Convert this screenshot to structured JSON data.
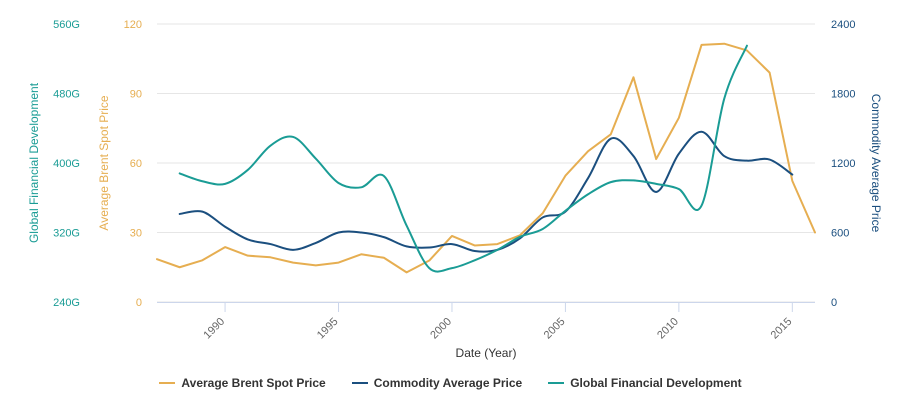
{
  "chart_data": {
    "type": "line",
    "title": "",
    "xlabel": "Date (Year)",
    "xlim": [
      1987,
      2016
    ],
    "x_ticks": [
      1990,
      1995,
      2000,
      2005,
      2010,
      2015
    ],
    "axes": {
      "left_outer": {
        "label": "Global Financial Development",
        "color": "#1a9c95",
        "ticks": [
          "240G",
          "320G",
          "400G",
          "480G",
          "560G"
        ],
        "range": [
          240,
          560
        ]
      },
      "left_inner": {
        "label": "Average Brent Spot Price",
        "color": "#e6ae51",
        "ticks": [
          "0",
          "30",
          "60",
          "90",
          "120"
        ],
        "range": [
          0,
          120
        ]
      },
      "right": {
        "label": "Commodity Average Price",
        "color": "#1b4f7f",
        "ticks": [
          "0",
          "600",
          "1200",
          "1800",
          "2400"
        ],
        "range": [
          0,
          2400
        ]
      }
    },
    "series": [
      {
        "name": "Average Brent Spot Price",
        "axis": "left_inner",
        "color": "#e6ae51",
        "x": [
          1987,
          1988,
          1989,
          1990,
          1991,
          1992,
          1993,
          1994,
          1995,
          1996,
          1997,
          1998,
          1999,
          2000,
          2001,
          2002,
          2003,
          2004,
          2005,
          2006,
          2007,
          2008,
          2009,
          2010,
          2011,
          2012,
          2013,
          2014,
          2015,
          2016
        ],
        "y": [
          18.5,
          15,
          18,
          23.7,
          20,
          19.3,
          17,
          15.8,
          17,
          20.6,
          19.1,
          12.8,
          17.9,
          28.5,
          24.4,
          25,
          28.8,
          38.3,
          54.5,
          65.1,
          72.4,
          97,
          61.7,
          79.5,
          111,
          111.5,
          108.6,
          99,
          52.3,
          30
        ]
      },
      {
        "name": "Commodity Average Price",
        "axis": "right",
        "color": "#1b4f7f",
        "x": [
          1988,
          1989,
          1990,
          1991,
          1992,
          1993,
          1994,
          1995,
          1996,
          1997,
          1998,
          1999,
          2000,
          2001,
          2002,
          2003,
          2004,
          2005,
          2006,
          2007,
          2008,
          2009,
          2010,
          2011,
          2012,
          2013,
          2014,
          2015
        ],
        "y": [
          760,
          780,
          650,
          540,
          500,
          450,
          510,
          600,
          600,
          560,
          480,
          470,
          500,
          440,
          450,
          550,
          730,
          780,
          1070,
          1410,
          1260,
          950,
          1280,
          1470,
          1260,
          1220,
          1230,
          1100
        ]
      },
      {
        "name": "Global Financial Development",
        "axis": "left_outer",
        "color": "#1a9c95",
        "x": [
          1988,
          1989,
          1990,
          1991,
          1992,
          1993,
          1994,
          1995,
          1996,
          1997,
          1998,
          1999,
          2000,
          2001,
          2002,
          2003,
          2004,
          2005,
          2006,
          2007,
          2008,
          2009,
          2010,
          2011,
          2012,
          2013
        ],
        "y": [
          388,
          379,
          376,
          392,
          420,
          430,
          405,
          377,
          372,
          385,
          328,
          279,
          279,
          288,
          300,
          315,
          324,
          345,
          364,
          378,
          380,
          376,
          370,
          351,
          474,
          535
        ]
      }
    ],
    "legend": {
      "position": "bottom-center",
      "items": [
        "Average Brent Spot Price",
        "Commodity Average Price",
        "Global Financial Development"
      ]
    },
    "grid": {
      "horizontal": true,
      "vertical": false,
      "color": "#e6e6e6"
    }
  }
}
